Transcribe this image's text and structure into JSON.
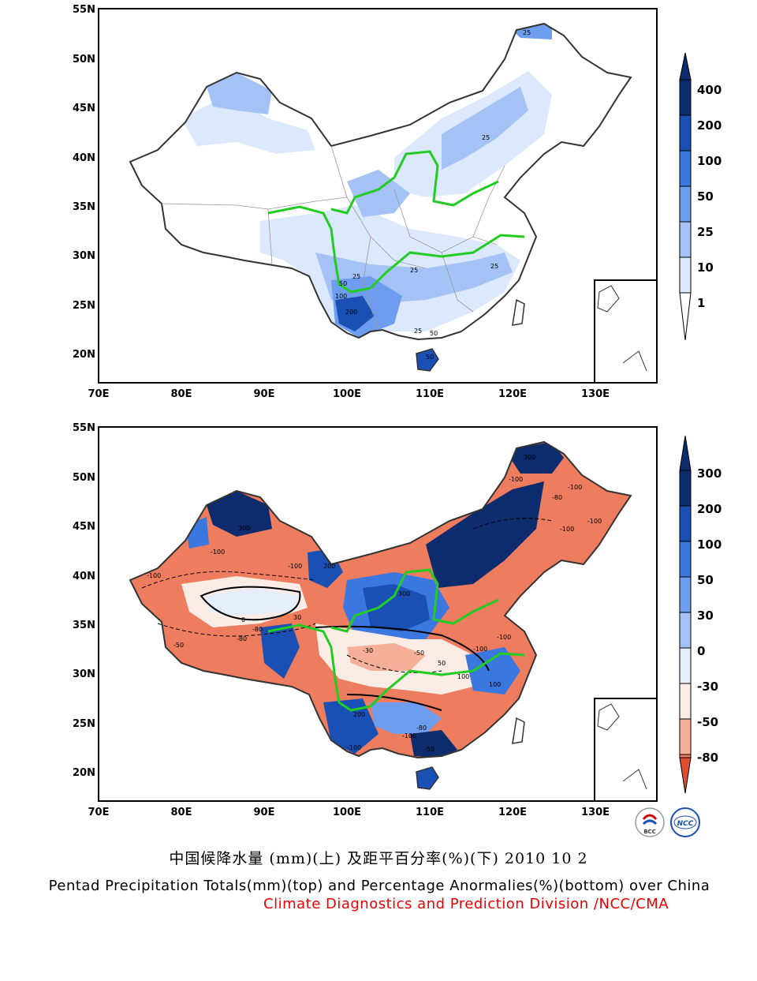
{
  "axes": {
    "lat_labels": [
      "55N",
      "50N",
      "45N",
      "40N",
      "35N",
      "30N",
      "25N",
      "20N"
    ],
    "lon_labels": [
      "70E",
      "80E",
      "90E",
      "100E",
      "110E",
      "120E",
      "130E"
    ]
  },
  "top_map": {
    "colorbar_labels": [
      "400",
      "200",
      "100",
      "50",
      "25",
      "10",
      "1"
    ],
    "colorbar_colors": [
      "#0c2c6e",
      "#1a4fb4",
      "#3a78e0",
      "#6e9cee",
      "#a4c2f6",
      "#dce8fc",
      "#ffffff"
    ],
    "contour_labels": [
      "25",
      "25",
      "25",
      "25",
      "25",
      "50",
      "50",
      "50",
      "100",
      "200",
      "25"
    ]
  },
  "bottom_map": {
    "colorbar_labels": [
      "300",
      "200",
      "100",
      "50",
      "30",
      "0",
      "-30",
      "-50",
      "-80"
    ],
    "colorbar_colors": [
      "#0c2c6e",
      "#1a4fb4",
      "#3a78e0",
      "#6e9cee",
      "#a4c2f6",
      "#e6eefc",
      "#fcece6",
      "#f6b09a",
      "#ee7c5e",
      "#e05030"
    ],
    "contour_labels": [
      "300",
      "-100",
      "-100",
      "-80",
      "-100",
      "-100",
      "300",
      "-100",
      "-100",
      "300",
      "200",
      "-100",
      "-50",
      "-80",
      "-100",
      "100",
      "-100",
      "-30",
      "-50",
      "-100",
      "-80",
      "50",
      "100",
      "200",
      "-100",
      "-80",
      "0",
      "-50",
      "30"
    ]
  },
  "logos": [
    "BCC",
    "NCC"
  ],
  "caption": {
    "chinese": "中国候降水量 (mm)(上) 及距平百分率(%)(下) 2010 10 2",
    "english": "Pentad Precipitation Totals(mm)(top) and Percentage Anormalies(%)(bottom) over China",
    "credit": "Climate Diagnostics and Prediction Division /NCC/CMA"
  },
  "colors": {
    "river": "#22cc22",
    "border": "#333333"
  }
}
